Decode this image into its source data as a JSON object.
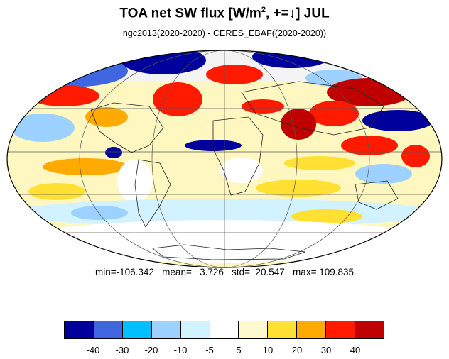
{
  "title": {
    "main_prefix": "TOA net SW flux [W/m",
    "superscript": "2",
    "main_suffix": ", +=↓]  JUL"
  },
  "subtitle": "ngc2013(2020-2020) - CERES_EBAF((2020-2020))",
  "stats": {
    "text": "min=-106.342   mean=   3.726   std=  20.547   max= 109.835"
  },
  "colorbar": {
    "colors": [
      "#00009c",
      "#3f66e0",
      "#00bfff",
      "#9dd1ff",
      "#d3f2ff",
      "#ffffff",
      "#fffacd",
      "#ffe033",
      "#ffaa00",
      "#ff1a00",
      "#c00000"
    ],
    "tick_labels": [
      "-40",
      "-30",
      "-20",
      "-10",
      "-5",
      "5",
      "10",
      "20",
      "30",
      "40"
    ]
  },
  "map": {
    "projection": "mollweide",
    "ocean_land_field": "difference field shown as colored shading"
  }
}
